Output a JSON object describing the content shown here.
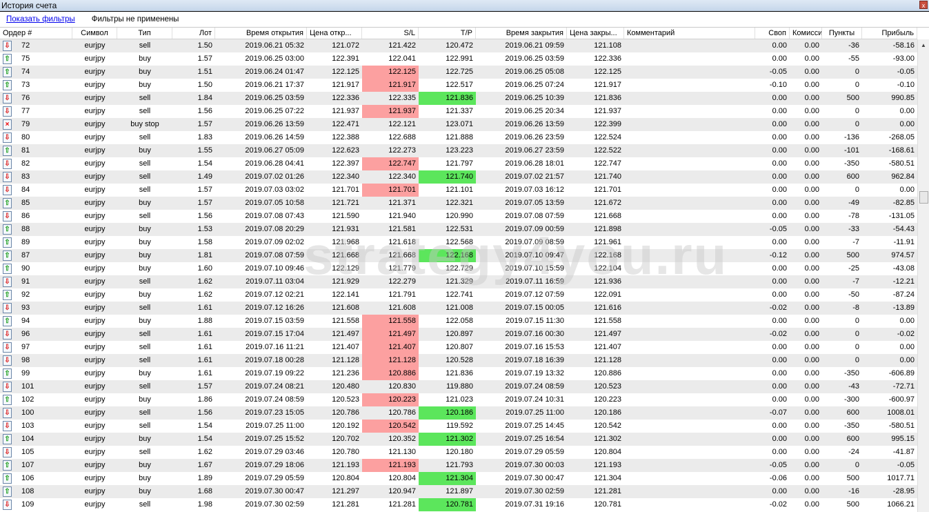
{
  "window": {
    "title": "История счета",
    "close_label": "x"
  },
  "filters": {
    "show_link": "Показать фильтры",
    "status": "Фильтры не применены"
  },
  "watermark": "strategy4you.ru",
  "columns": [
    "Ордер #",
    "Символ",
    "Тип",
    "Лот",
    "Время открытия",
    "Цена откр...",
    "S/L",
    "T/P",
    "Время закрытия",
    "Цена закры...",
    "Комментарий",
    "Своп",
    "Комиссия",
    "Пункты",
    "Прибыль"
  ],
  "colors": {
    "sl_hit": "#fca0a0",
    "tp_hit": "#5ce65c",
    "row_alt": "#ebebeb"
  },
  "rows": [
    [
      "72",
      "eurjpy",
      "sell",
      "1.50",
      "2019.06.21 05:32",
      "121.072",
      "121.422",
      "120.472",
      "2019.06.21 09:59",
      "121.108",
      "",
      "0.00",
      "0.00",
      "-36",
      "-58.16",
      ""
    ],
    [
      "75",
      "eurjpy",
      "buy",
      "1.57",
      "2019.06.25 03:00",
      "122.391",
      "122.041",
      "122.991",
      "2019.06.25 03:59",
      "122.336",
      "",
      "0.00",
      "0.00",
      "-55",
      "-93.00",
      ""
    ],
    [
      "74",
      "eurjpy",
      "buy",
      "1.51",
      "2019.06.24 01:47",
      "122.125",
      "122.125",
      "122.725",
      "2019.06.25 05:08",
      "122.125",
      "",
      "-0.05",
      "0.00",
      "0",
      "-0.05",
      "sl"
    ],
    [
      "73",
      "eurjpy",
      "buy",
      "1.50",
      "2019.06.21 17:37",
      "121.917",
      "121.917",
      "122.517",
      "2019.06.25 07:24",
      "121.917",
      "",
      "-0.10",
      "0.00",
      "0",
      "-0.10",
      "sl"
    ],
    [
      "76",
      "eurjpy",
      "sell",
      "1.84",
      "2019.06.25 03:59",
      "122.336",
      "122.335",
      "121.836",
      "2019.06.25 10:39",
      "121.836",
      "",
      "0.00",
      "0.00",
      "500",
      "990.85",
      "tp"
    ],
    [
      "77",
      "eurjpy",
      "sell",
      "1.56",
      "2019.06.25 07:22",
      "121.937",
      "121.937",
      "121.337",
      "2019.06.25 20:34",
      "121.937",
      "",
      "0.00",
      "0.00",
      "0",
      "0.00",
      "sl"
    ],
    [
      "79",
      "eurjpy",
      "buy stop",
      "1.57",
      "2019.06.26 13:59",
      "122.471",
      "122.121",
      "123.071",
      "2019.06.26 13:59",
      "122.399",
      "",
      "0.00",
      "0.00",
      "0",
      "0.00",
      ""
    ],
    [
      "80",
      "eurjpy",
      "sell",
      "1.83",
      "2019.06.26 14:59",
      "122.388",
      "122.688",
      "121.888",
      "2019.06.26 23:59",
      "122.524",
      "",
      "0.00",
      "0.00",
      "-136",
      "-268.05",
      ""
    ],
    [
      "81",
      "eurjpy",
      "buy",
      "1.55",
      "2019.06.27 05:09",
      "122.623",
      "122.273",
      "123.223",
      "2019.06.27 23:59",
      "122.522",
      "",
      "0.00",
      "0.00",
      "-101",
      "-168.61",
      ""
    ],
    [
      "82",
      "eurjpy",
      "sell",
      "1.54",
      "2019.06.28 04:41",
      "122.397",
      "122.747",
      "121.797",
      "2019.06.28 18:01",
      "122.747",
      "",
      "0.00",
      "0.00",
      "-350",
      "-580.51",
      "sl"
    ],
    [
      "83",
      "eurjpy",
      "sell",
      "1.49",
      "2019.07.02 01:26",
      "122.340",
      "122.340",
      "121.740",
      "2019.07.02 21:57",
      "121.740",
      "",
      "0.00",
      "0.00",
      "600",
      "962.84",
      "tp"
    ],
    [
      "84",
      "eurjpy",
      "sell",
      "1.57",
      "2019.07.03 03:02",
      "121.701",
      "121.701",
      "121.101",
      "2019.07.03 16:12",
      "121.701",
      "",
      "0.00",
      "0.00",
      "0",
      "0.00",
      "sl"
    ],
    [
      "85",
      "eurjpy",
      "buy",
      "1.57",
      "2019.07.05 10:58",
      "121.721",
      "121.371",
      "122.321",
      "2019.07.05 13:59",
      "121.672",
      "",
      "0.00",
      "0.00",
      "-49",
      "-82.85",
      ""
    ],
    [
      "86",
      "eurjpy",
      "sell",
      "1.56",
      "2019.07.08 07:43",
      "121.590",
      "121.940",
      "120.990",
      "2019.07.08 07:59",
      "121.668",
      "",
      "0.00",
      "0.00",
      "-78",
      "-131.05",
      ""
    ],
    [
      "88",
      "eurjpy",
      "buy",
      "1.53",
      "2019.07.08 20:29",
      "121.931",
      "121.581",
      "122.531",
      "2019.07.09 00:59",
      "121.898",
      "",
      "-0.05",
      "0.00",
      "-33",
      "-54.43",
      ""
    ],
    [
      "89",
      "eurjpy",
      "buy",
      "1.58",
      "2019.07.09 02:02",
      "121.968",
      "121.618",
      "122.568",
      "2019.07.09 08:59",
      "121.961",
      "",
      "0.00",
      "0.00",
      "-7",
      "-11.91",
      ""
    ],
    [
      "87",
      "eurjpy",
      "buy",
      "1.81",
      "2019.07.08 07:59",
      "121.668",
      "121.668",
      "122.168",
      "2019.07.10 09:47",
      "122.168",
      "",
      "-0.12",
      "0.00",
      "500",
      "974.57",
      "tp"
    ],
    [
      "90",
      "eurjpy",
      "buy",
      "1.60",
      "2019.07.10 09:46",
      "122.129",
      "121.779",
      "122.729",
      "2019.07.10 15:59",
      "122.104",
      "",
      "0.00",
      "0.00",
      "-25",
      "-43.08",
      ""
    ],
    [
      "91",
      "eurjpy",
      "sell",
      "1.62",
      "2019.07.11 03:04",
      "121.929",
      "122.279",
      "121.329",
      "2019.07.11 16:59",
      "121.936",
      "",
      "0.00",
      "0.00",
      "-7",
      "-12.21",
      ""
    ],
    [
      "92",
      "eurjpy",
      "buy",
      "1.62",
      "2019.07.12 02:21",
      "122.141",
      "121.791",
      "122.741",
      "2019.07.12 07:59",
      "122.091",
      "",
      "0.00",
      "0.00",
      "-50",
      "-87.24",
      ""
    ],
    [
      "93",
      "eurjpy",
      "sell",
      "1.61",
      "2019.07.12 16:26",
      "121.608",
      "121.608",
      "121.008",
      "2019.07.15 00:05",
      "121.616",
      "",
      "-0.02",
      "0.00",
      "-8",
      "-13.89",
      ""
    ],
    [
      "94",
      "eurjpy",
      "buy",
      "1.88",
      "2019.07.15 03:59",
      "121.558",
      "121.558",
      "122.058",
      "2019.07.15 11:30",
      "121.558",
      "",
      "0.00",
      "0.00",
      "0",
      "0.00",
      "sl"
    ],
    [
      "96",
      "eurjpy",
      "sell",
      "1.61",
      "2019.07.15 17:04",
      "121.497",
      "121.497",
      "120.897",
      "2019.07.16 00:30",
      "121.497",
      "",
      "-0.02",
      "0.00",
      "0",
      "-0.02",
      "sl"
    ],
    [
      "97",
      "eurjpy",
      "sell",
      "1.61",
      "2019.07.16 11:21",
      "121.407",
      "121.407",
      "120.807",
      "2019.07.16 15:53",
      "121.407",
      "",
      "0.00",
      "0.00",
      "0",
      "0.00",
      "sl"
    ],
    [
      "98",
      "eurjpy",
      "sell",
      "1.61",
      "2019.07.18 00:28",
      "121.128",
      "121.128",
      "120.528",
      "2019.07.18 16:39",
      "121.128",
      "",
      "0.00",
      "0.00",
      "0",
      "0.00",
      "sl"
    ],
    [
      "99",
      "eurjpy",
      "buy",
      "1.61",
      "2019.07.19 09:22",
      "121.236",
      "120.886",
      "121.836",
      "2019.07.19 13:32",
      "120.886",
      "",
      "0.00",
      "0.00",
      "-350",
      "-606.89",
      "sl"
    ],
    [
      "101",
      "eurjpy",
      "sell",
      "1.57",
      "2019.07.24 08:21",
      "120.480",
      "120.830",
      "119.880",
      "2019.07.24 08:59",
      "120.523",
      "",
      "0.00",
      "0.00",
      "-43",
      "-72.71",
      ""
    ],
    [
      "102",
      "eurjpy",
      "buy",
      "1.86",
      "2019.07.24 08:59",
      "120.523",
      "120.223",
      "121.023",
      "2019.07.24 10:31",
      "120.223",
      "",
      "0.00",
      "0.00",
      "-300",
      "-600.97",
      "sl"
    ],
    [
      "100",
      "eurjpy",
      "sell",
      "1.56",
      "2019.07.23 15:05",
      "120.786",
      "120.786",
      "120.186",
      "2019.07.25 11:00",
      "120.186",
      "",
      "-0.07",
      "0.00",
      "600",
      "1008.01",
      "tp"
    ],
    [
      "103",
      "eurjpy",
      "sell",
      "1.54",
      "2019.07.25 11:00",
      "120.192",
      "120.542",
      "119.592",
      "2019.07.25 14:45",
      "120.542",
      "",
      "0.00",
      "0.00",
      "-350",
      "-580.51",
      "sl"
    ],
    [
      "104",
      "eurjpy",
      "buy",
      "1.54",
      "2019.07.25 15:52",
      "120.702",
      "120.352",
      "121.302",
      "2019.07.25 16:54",
      "121.302",
      "",
      "0.00",
      "0.00",
      "600",
      "995.15",
      "tp"
    ],
    [
      "105",
      "eurjpy",
      "sell",
      "1.62",
      "2019.07.29 03:46",
      "120.780",
      "121.130",
      "120.180",
      "2019.07.29 05:59",
      "120.804",
      "",
      "0.00",
      "0.00",
      "-24",
      "-41.87",
      ""
    ],
    [
      "107",
      "eurjpy",
      "buy",
      "1.67",
      "2019.07.29 18:06",
      "121.193",
      "121.193",
      "121.793",
      "2019.07.30 00:03",
      "121.193",
      "",
      "-0.05",
      "0.00",
      "0",
      "-0.05",
      "sl"
    ],
    [
      "106",
      "eurjpy",
      "buy",
      "1.89",
      "2019.07.29 05:59",
      "120.804",
      "120.804",
      "121.304",
      "2019.07.30 00:47",
      "121.304",
      "",
      "-0.06",
      "0.00",
      "500",
      "1017.71",
      "tp"
    ],
    [
      "108",
      "eurjpy",
      "buy",
      "1.68",
      "2019.07.30 00:47",
      "121.297",
      "120.947",
      "121.897",
      "2019.07.30 02:59",
      "121.281",
      "",
      "0.00",
      "0.00",
      "-16",
      "-28.95",
      ""
    ],
    [
      "109",
      "eurjpy",
      "sell",
      "1.98",
      "2019.07.30 02:59",
      "121.281",
      "121.281",
      "120.781",
      "2019.07.31 19:16",
      "120.781",
      "",
      "-0.02",
      "0.00",
      "500",
      "1066.21",
      "tp"
    ]
  ]
}
